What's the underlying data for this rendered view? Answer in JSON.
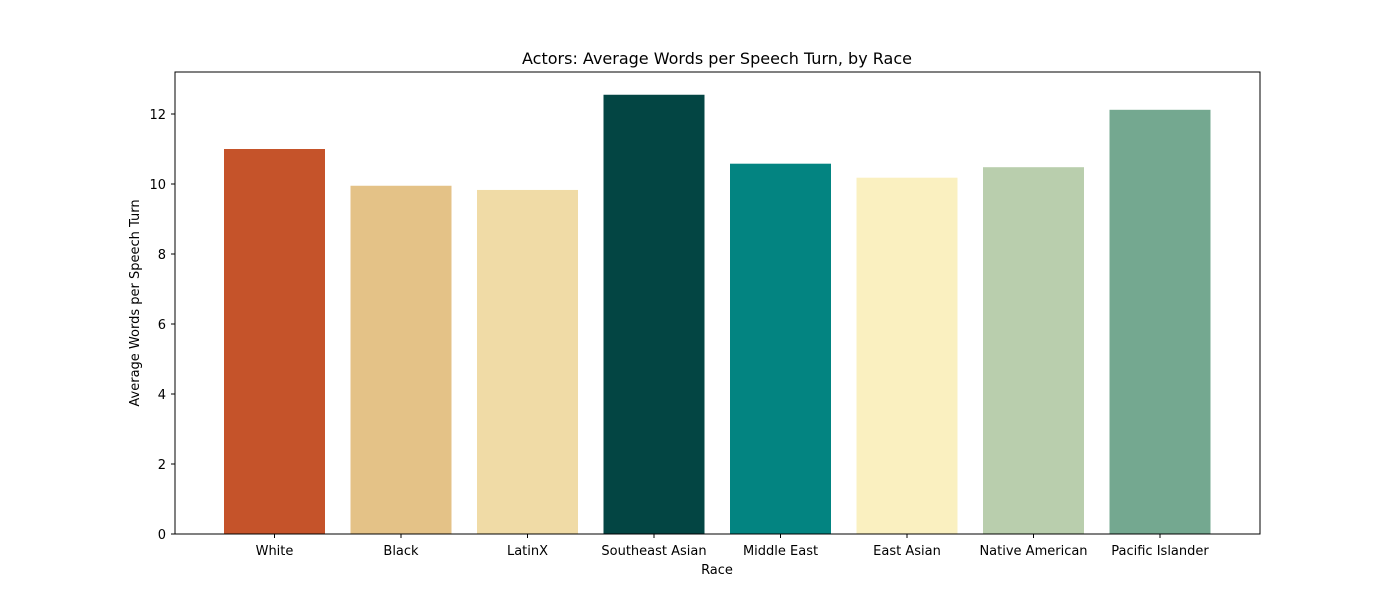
{
  "chart_data": {
    "type": "bar",
    "title": "Actors: Average Words per Speech Turn, by Race",
    "xlabel": "Race",
    "ylabel": "Average Words per Speech Turn",
    "categories": [
      "White",
      "Black",
      "LatinX",
      "Southeast Asian",
      "Middle East",
      "East Asian",
      "Native American",
      "Pacific Islander"
    ],
    "values": [
      11.0,
      9.95,
      9.83,
      12.55,
      10.58,
      10.18,
      10.48,
      12.12
    ],
    "colors": [
      "#c5532a",
      "#e4c287",
      "#f0dba6",
      "#034543",
      "#038481",
      "#faf0c0",
      "#b9cead",
      "#74a890"
    ],
    "ylim": [
      0,
      13.2
    ],
    "yticks": [
      0,
      2,
      4,
      6,
      8,
      10,
      12
    ],
    "grid": false,
    "legend": "none"
  }
}
